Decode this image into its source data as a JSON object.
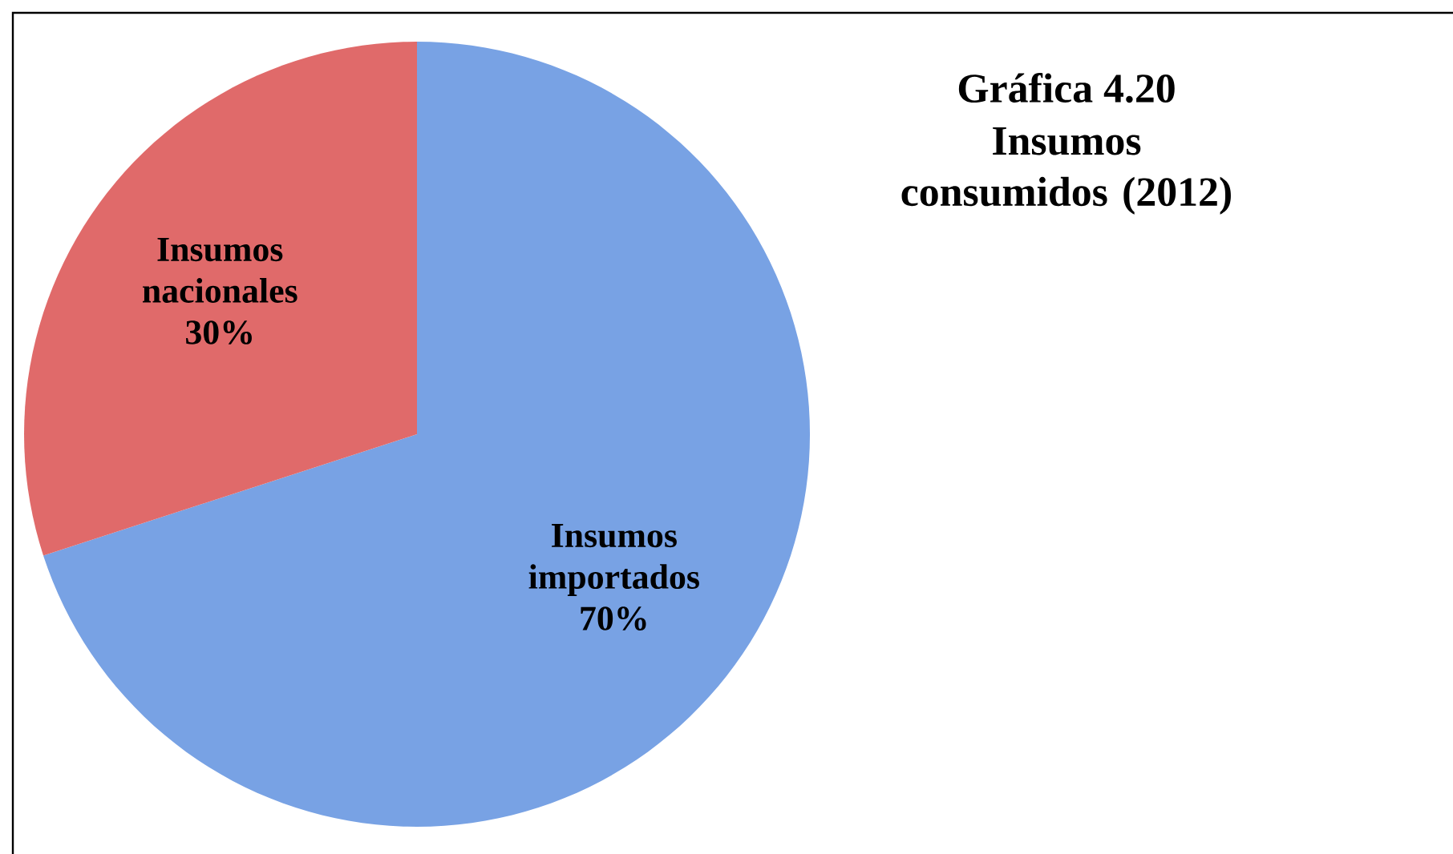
{
  "chart_data": {
    "type": "pie",
    "title": "Gráfica 4.20",
    "subtitle": "Insumos consumidos (2012)",
    "categories": [
      "Insumos importados",
      "Insumos nacionales"
    ],
    "values": [
      70,
      30
    ],
    "colors": [
      "#78a2e4",
      "#e06a6a"
    ],
    "value_labels": [
      "70%",
      "30%"
    ]
  }
}
